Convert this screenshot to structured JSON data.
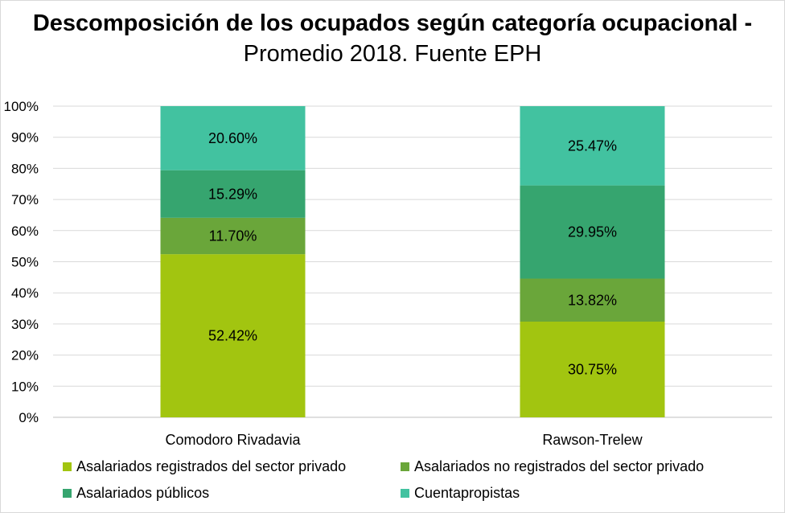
{
  "title": {
    "bold_text": "Descomposición de los ocupados según categoría ocupacional -",
    "regular_text": "Promedio 2018. Fuente EPH"
  },
  "chart_data": {
    "type": "bar",
    "stacked": true,
    "percent": true,
    "title": "Descomposición de los ocupados según categoría ocupacional - Promedio 2018. Fuente EPH",
    "categories": [
      "Comodoro Rivadavia",
      "Rawson-Trelew"
    ],
    "series": [
      {
        "name": "Asalariados registrados del sector privado",
        "values": [
          52.42,
          30.75
        ],
        "labels": [
          "52.42%",
          "30.75%"
        ],
        "color": "#a2c510"
      },
      {
        "name": "Asalariados no registrados del sector privado",
        "values": [
          11.7,
          13.82
        ],
        "labels": [
          "11.70%",
          "13.82%"
        ],
        "color": "#6aa63a"
      },
      {
        "name": "Asalariados públicos",
        "values": [
          15.29,
          29.95
        ],
        "labels": [
          "15.29%",
          "29.95%"
        ],
        "color": "#36a56f"
      },
      {
        "name": "Cuentapropistas",
        "values": [
          20.6,
          25.47
        ],
        "labels": [
          "20.60%",
          "25.47%"
        ],
        "color": "#42c2a0"
      }
    ],
    "ylim": [
      0,
      100
    ],
    "yticks": [
      "0%",
      "10%",
      "20%",
      "30%",
      "40%",
      "50%",
      "60%",
      "70%",
      "80%",
      "90%",
      "100%"
    ],
    "grid": true,
    "legend_position": "bottom"
  }
}
